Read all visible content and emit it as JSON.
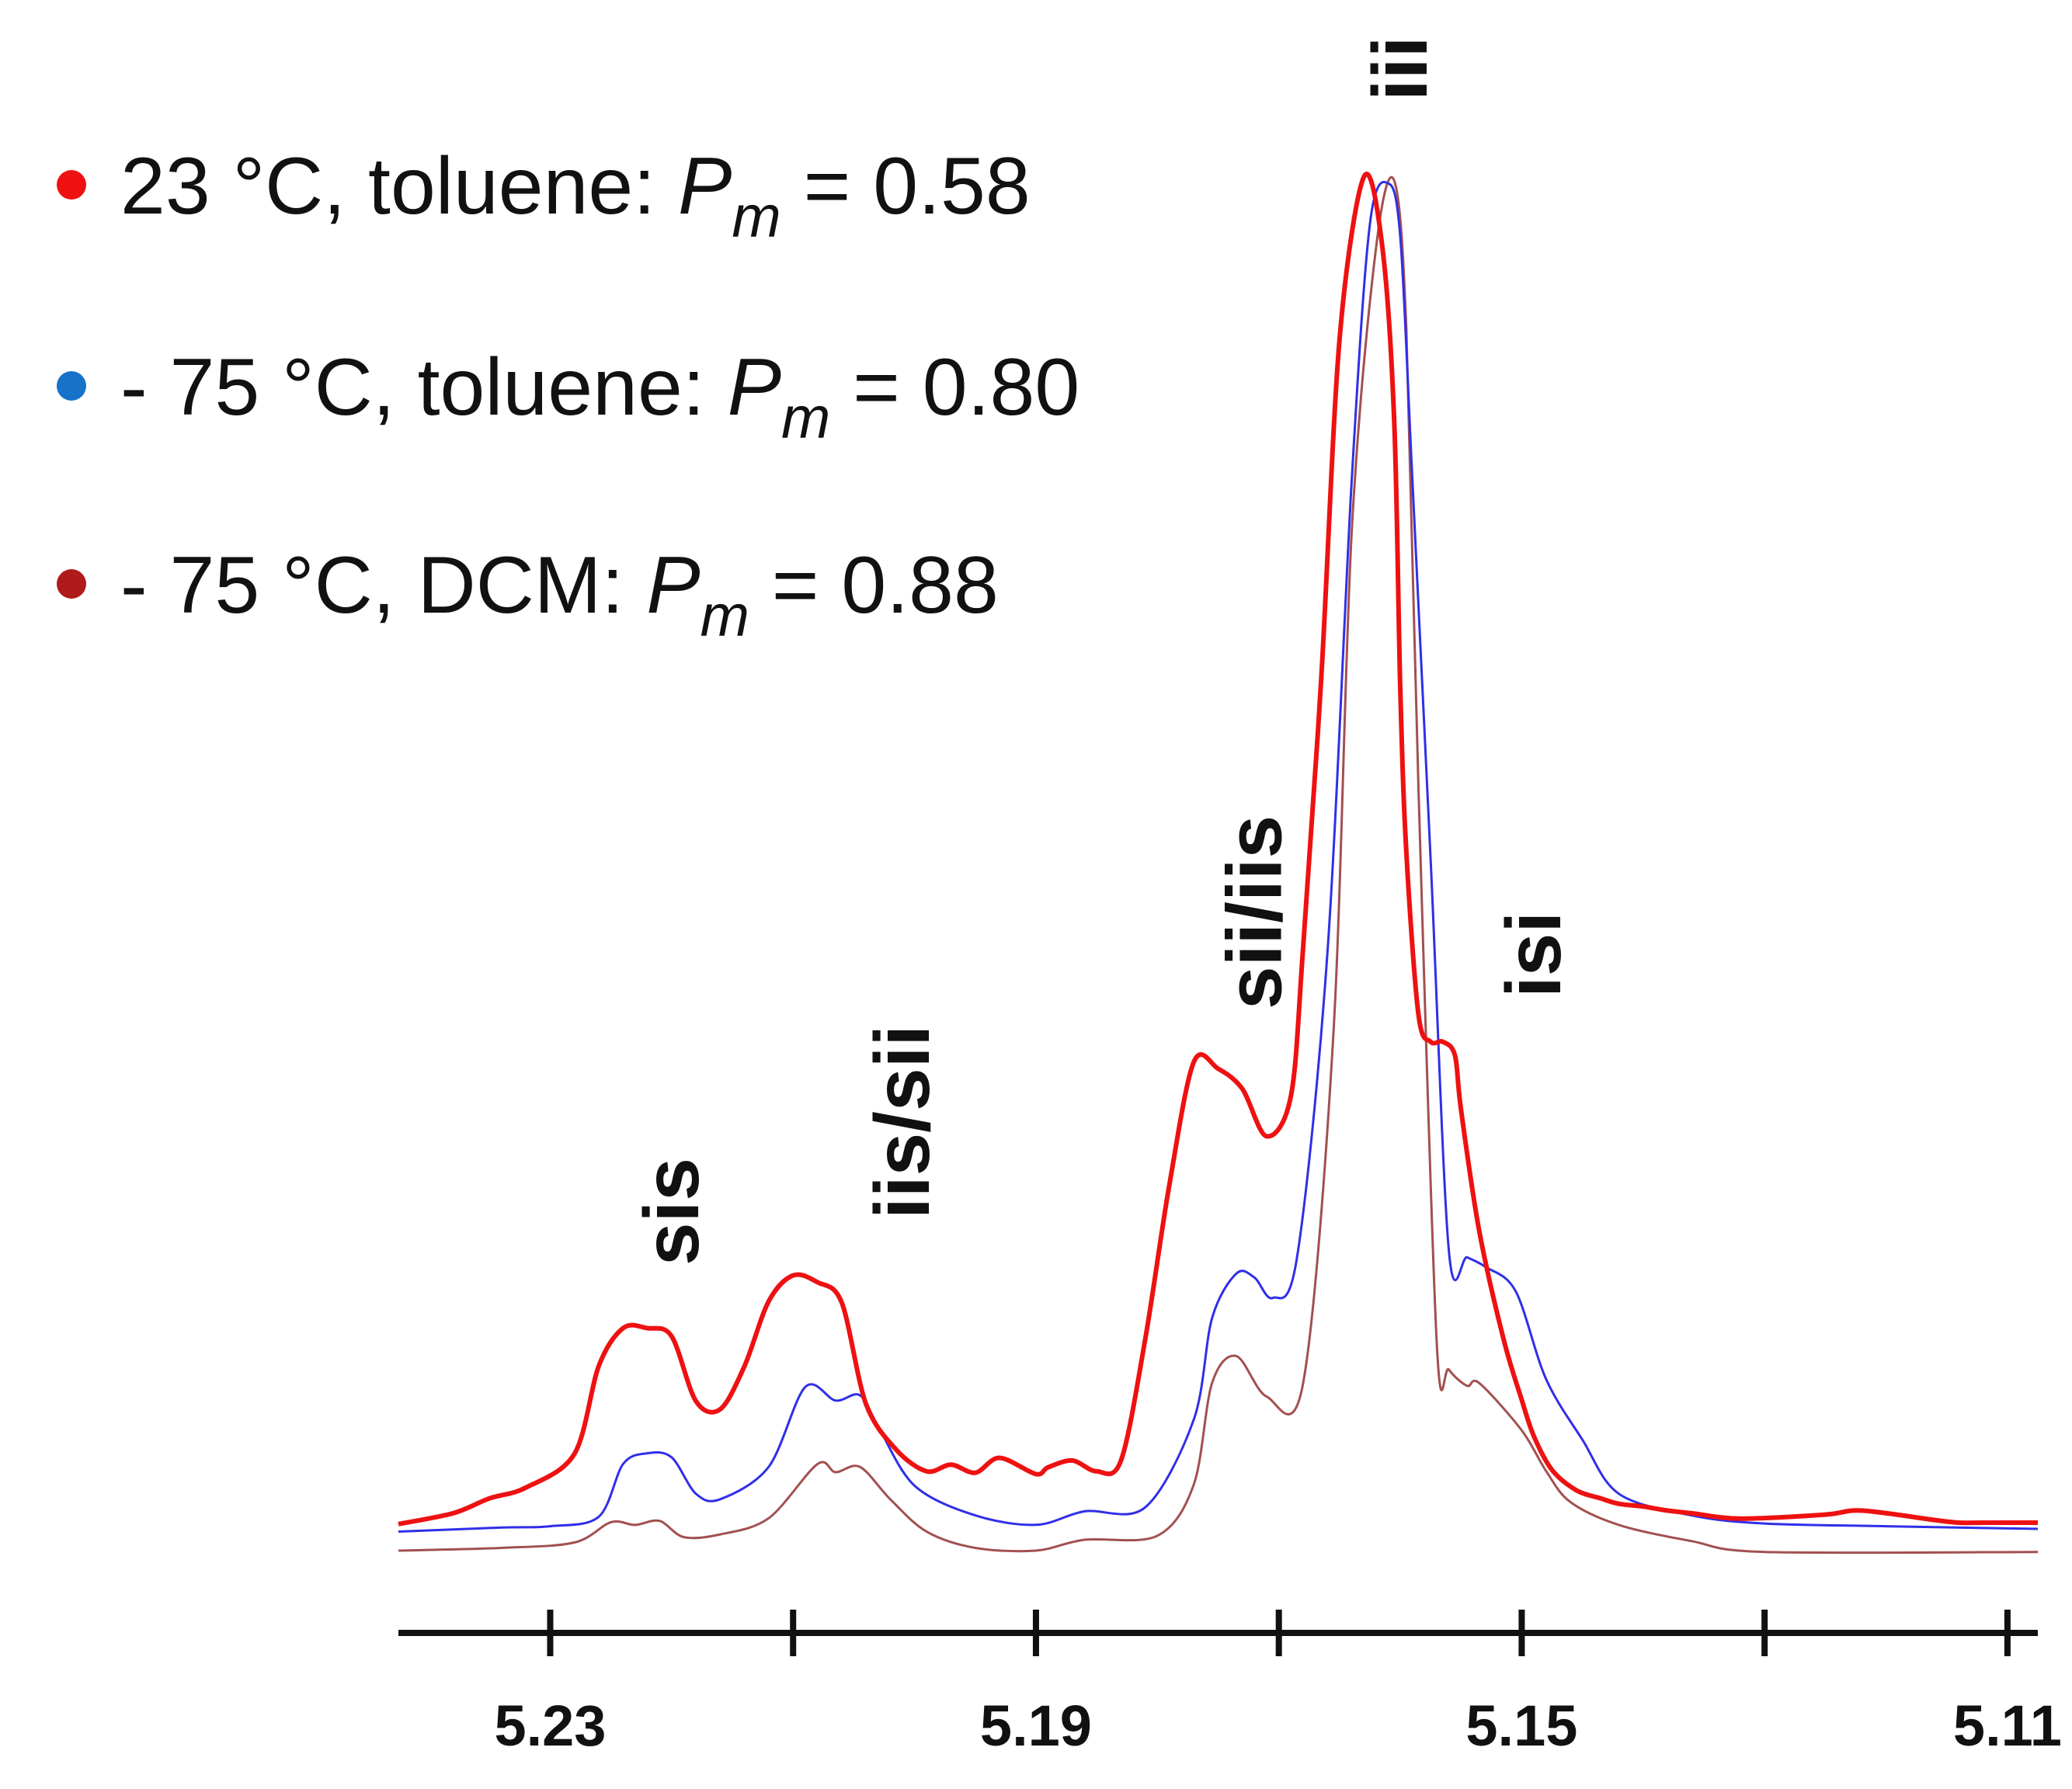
{
  "chart_data": {
    "type": "line",
    "title": "",
    "xlabel": "",
    "ylabel": "",
    "xlim": [
      5.2425,
      5.1075
    ],
    "ylim": [
      -0.02,
      1.0
    ],
    "x_reversed": true,
    "tick_values": [
      5.23,
      5.21,
      5.19,
      5.17,
      5.15,
      5.13,
      5.11
    ],
    "tick_labels": [
      "5.23",
      "",
      "5.19",
      "",
      "5.15",
      "",
      "5.11"
    ],
    "peak_labels": [
      {
        "text": "sis",
        "x": 5.22
      },
      {
        "text": "iis/sii",
        "x": 5.201
      },
      {
        "text": "sii/iis",
        "x": 5.172
      },
      {
        "text": "iii",
        "x": 5.16
      },
      {
        "text": "isi",
        "x": 5.149
      }
    ],
    "legend": [
      {
        "label": "23 °C, toluene: ",
        "sym": "P",
        "sub": "m",
        "eq": " = 0.58",
        "color": "#ee1111"
      },
      {
        "label": "- 75 °C, toluene: ",
        "sym": "P",
        "sub": "m",
        "eq": " = 0.80",
        "color": "#1673c9"
      },
      {
        "label": "- 75 °C, DCM: ",
        "sym": "P",
        "sub": "m",
        "eq": " = 0.88",
        "color": "#b01a1a"
      }
    ],
    "series": [
      {
        "name": "23 °C, toluene",
        "color": "#ee1111",
        "width": 6,
        "x": [
          5.2425,
          5.238,
          5.235,
          5.232,
          5.228,
          5.226,
          5.224,
          5.222,
          5.22,
          5.218,
          5.216,
          5.214,
          5.212,
          5.21,
          5.208,
          5.206,
          5.204,
          5.2015,
          5.199,
          5.197,
          5.195,
          5.193,
          5.19,
          5.189,
          5.187,
          5.185,
          5.183,
          5.181,
          5.179,
          5.177,
          5.175,
          5.173,
          5.171,
          5.169,
          5.168,
          5.1665,
          5.165,
          5.163,
          5.1615,
          5.1605,
          5.16,
          5.1595,
          5.1585,
          5.1575,
          5.1565,
          5.1555,
          5.155,
          5.1535,
          5.1515,
          5.15,
          5.149,
          5.1475,
          5.1455,
          5.1435,
          5.142,
          5.14,
          5.138,
          5.136,
          5.132,
          5.125,
          5.122,
          5.116,
          5.114,
          5.112,
          5.1075
        ],
        "y": [
          0.003,
          0.011,
          0.022,
          0.03,
          0.055,
          0.12,
          0.148,
          0.148,
          0.142,
          0.094,
          0.088,
          0.12,
          0.168,
          0.187,
          0.182,
          0.167,
          0.092,
          0.058,
          0.042,
          0.047,
          0.041,
          0.052,
          0.04,
          0.045,
          0.05,
          0.042,
          0.05,
          0.14,
          0.255,
          0.345,
          0.34,
          0.325,
          0.29,
          0.32,
          0.43,
          0.63,
          0.88,
          1.0,
          0.95,
          0.82,
          0.62,
          0.5,
          0.38,
          0.36,
          0.36,
          0.35,
          0.31,
          0.22,
          0.14,
          0.095,
          0.068,
          0.043,
          0.028,
          0.022,
          0.018,
          0.016,
          0.013,
          0.011,
          0.007,
          0.01,
          0.013,
          0.006,
          0.004,
          0.004,
          0.004
        ]
      },
      {
        "name": "- 75 °C, toluene",
        "color": "#2f2fe8",
        "width": 3,
        "x": [
          5.2425,
          5.234,
          5.23,
          5.226,
          5.224,
          5.222,
          5.22,
          5.218,
          5.216,
          5.212,
          5.209,
          5.2065,
          5.2045,
          5.203,
          5.2,
          5.195,
          5.19,
          5.186,
          5.181,
          5.177,
          5.1755,
          5.1735,
          5.172,
          5.1705,
          5.1685,
          5.166,
          5.164,
          5.1625,
          5.161,
          5.16,
          5.159,
          5.1575,
          5.156,
          5.1545,
          5.153,
          5.1505,
          5.148,
          5.145,
          5.142,
          5.136,
          5.13,
          5.12,
          5.1075
        ],
        "y": [
          0.002,
          0.005,
          0.006,
          0.013,
          0.052,
          0.06,
          0.057,
          0.03,
          0.026,
          0.05,
          0.109,
          0.099,
          0.103,
          0.08,
          0.036,
          0.014,
          0.007,
          0.017,
          0.02,
          0.085,
          0.16,
          0.193,
          0.19,
          0.175,
          0.205,
          0.43,
          0.78,
          0.97,
          1.0,
          0.96,
          0.78,
          0.5,
          0.21,
          0.205,
          0.198,
          0.18,
          0.115,
          0.07,
          0.03,
          0.014,
          0.008,
          0.006,
          0.004
        ]
      },
      {
        "name": "- 75 °C, DCM",
        "color": "#a25050",
        "width": 3,
        "x": [
          5.2425,
          5.234,
          5.228,
          5.225,
          5.223,
          5.221,
          5.219,
          5.216,
          5.212,
          5.208,
          5.2065,
          5.2045,
          5.202,
          5.199,
          5.195,
          5.19,
          5.186,
          5.18,
          5.177,
          5.1755,
          5.1735,
          5.171,
          5.168,
          5.1655,
          5.164,
          5.162,
          5.1605,
          5.1595,
          5.1585,
          5.157,
          5.156,
          5.1545,
          5.1535,
          5.15,
          5.148,
          5.146,
          5.142,
          5.136,
          5.13,
          5.1075
        ],
        "y": [
          -0.004,
          -0.002,
          0.002,
          0.017,
          0.015,
          0.018,
          0.006,
          0.008,
          0.02,
          0.06,
          0.054,
          0.058,
          0.034,
          0.01,
          -0.002,
          -0.004,
          0.004,
          0.007,
          0.045,
          0.12,
          0.14,
          0.11,
          0.12,
          0.38,
          0.75,
          0.96,
          1.01,
          0.9,
          0.56,
          0.15,
          0.13,
          0.118,
          0.12,
          0.085,
          0.055,
          0.032,
          0.015,
          0.003,
          -0.005,
          -0.005
        ]
      }
    ]
  }
}
